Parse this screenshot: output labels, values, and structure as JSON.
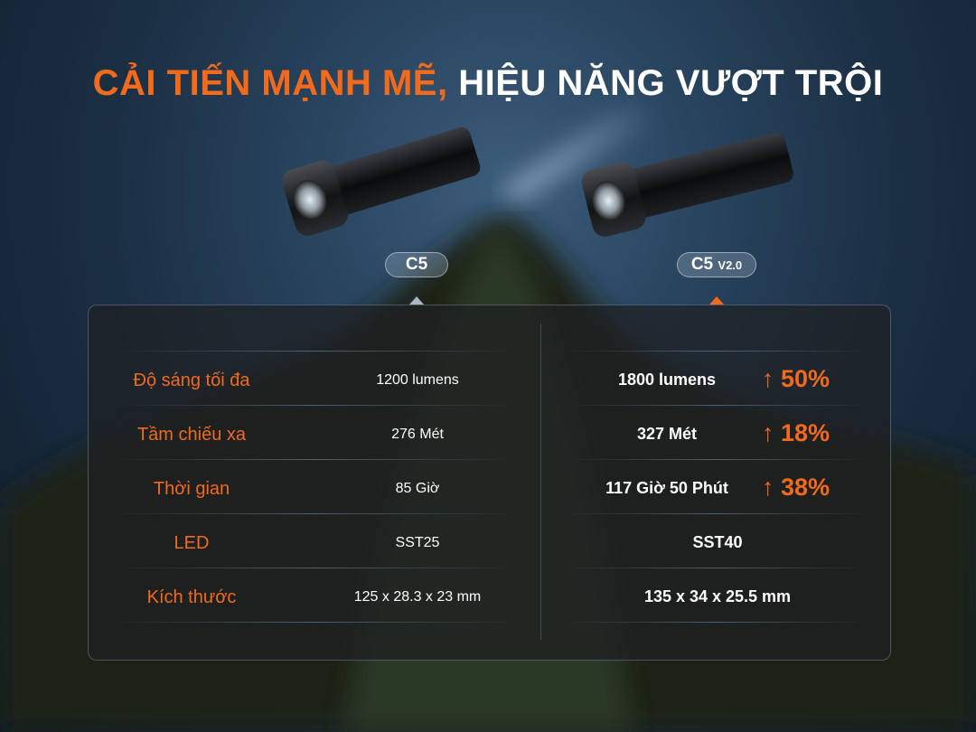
{
  "title": {
    "highlight": "CẢI TIẾN MẠNH MẼ,",
    "rest": " HIỆU NĂNG VƯỢT TRỘI"
  },
  "colors": {
    "accent": "#f26a1b",
    "text": "#ffffff"
  },
  "products": [
    {
      "name": "C5",
      "version": ""
    },
    {
      "name": "C5",
      "version": "V2.0"
    }
  ],
  "rows": [
    {
      "label": "Độ sáng tối đa",
      "c5": "1200 lumens",
      "c5v2": "1800 lumens",
      "improvement": "↑ 50%"
    },
    {
      "label": "Tầm chiếu xa",
      "c5": "276 Mét",
      "c5v2": "327 Mét",
      "improvement": "↑ 18%"
    },
    {
      "label": "Thời gian",
      "c5": "85 Giờ",
      "c5v2": "117 Giờ 50 Phút",
      "improvement": "↑ 38%"
    },
    {
      "label": "LED",
      "c5": "SST25",
      "c5v2": "SST40",
      "improvement": ""
    },
    {
      "label": "Kích thước",
      "c5": "125 x 28.3 x 23 mm",
      "c5v2": "135 x 34 x 25.5 mm",
      "improvement": ""
    }
  ]
}
